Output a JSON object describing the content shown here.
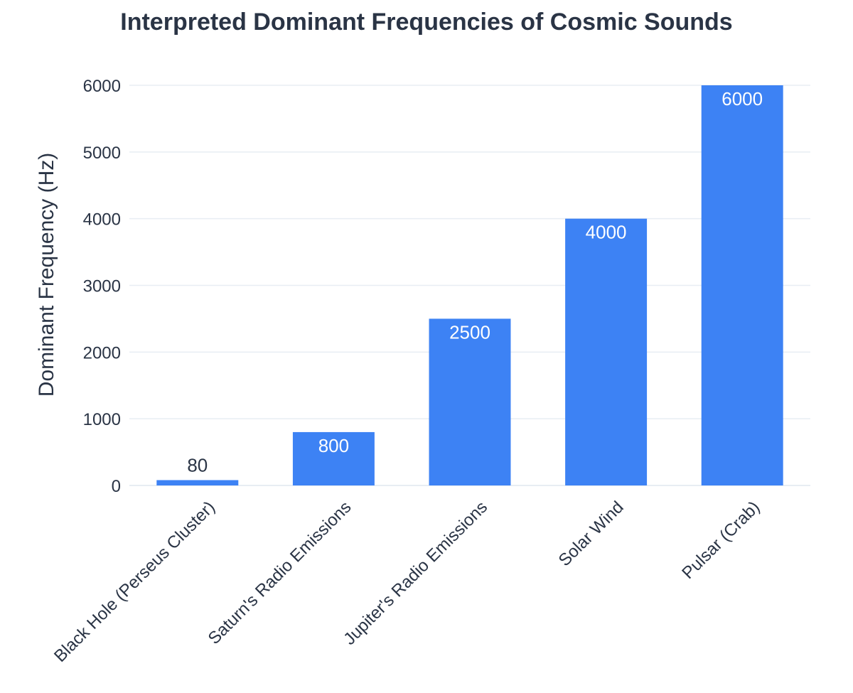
{
  "chart_data": {
    "type": "bar",
    "title": "Interpreted Dominant Frequencies of Cosmic Sounds",
    "xlabel": "",
    "ylabel": "Dominant Frequency (Hz)",
    "categories": [
      "Black Hole (Perseus Cluster)",
      "Saturn's Radio Emissions",
      "Jupiter's Radio Emissions",
      "Solar Wind",
      "Pulsar (Crab)"
    ],
    "values": [
      80,
      800,
      2500,
      4000,
      6000
    ],
    "data_labels": [
      "80",
      "800",
      "2500",
      "4000",
      "6000"
    ],
    "yticks": [
      0,
      1000,
      2000,
      3000,
      4000,
      5000,
      6000
    ],
    "ylim": [
      0,
      6000
    ],
    "grid": true,
    "legend": "none"
  },
  "colors": {
    "bar": "#3d82f4",
    "text": "#2a3445",
    "grid": "#e8edf3",
    "label_inside": "#ffffff"
  }
}
